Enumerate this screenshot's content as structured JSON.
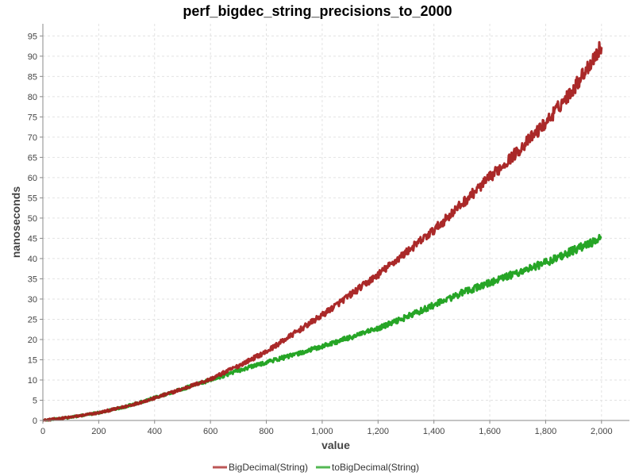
{
  "chart_data": {
    "type": "line",
    "title": "perf_bigdec_string_precisions_to_2000",
    "xlabel": "value",
    "ylabel": "nanoseconds",
    "xlim": [
      0,
      2100
    ],
    "ylim": [
      0,
      98
    ],
    "x_ticks": [
      0,
      200,
      400,
      600,
      800,
      1000,
      1200,
      1400,
      1600,
      1800,
      2000
    ],
    "x_tick_labels": [
      "0",
      "200",
      "400",
      "600",
      "800",
      "1,000",
      "1,200",
      "1,400",
      "1,600",
      "1,800",
      "2,000"
    ],
    "y_ticks": [
      0,
      5,
      10,
      15,
      20,
      25,
      30,
      35,
      40,
      45,
      50,
      55,
      60,
      65,
      70,
      75,
      80,
      85,
      90,
      95
    ],
    "grid": true,
    "legend_position": "bottom-center",
    "series": [
      {
        "name": "BigDecimal(String)",
        "color": "#a51d1d",
        "x": [
          0,
          100,
          200,
          300,
          400,
          500,
          600,
          700,
          800,
          900,
          1000,
          1100,
          1200,
          1300,
          1400,
          1500,
          1600,
          1700,
          1800,
          1900,
          2000
        ],
        "values": [
          0,
          0.8,
          1.9,
          3.5,
          5.5,
          7.8,
          10.2,
          13.5,
          17.0,
          21.5,
          26.0,
          31.0,
          36.0,
          41.5,
          47.0,
          53.5,
          60.0,
          66.5,
          73.5,
          82.0,
          92.5
        ]
      },
      {
        "name": "toBigDecimal(String)",
        "color": "#1aa01a",
        "x": [
          0,
          100,
          200,
          300,
          400,
          500,
          600,
          700,
          800,
          900,
          1000,
          1100,
          1200,
          1300,
          1400,
          1500,
          1600,
          1700,
          1800,
          1900,
          2000
        ],
        "values": [
          0,
          0.8,
          1.9,
          3.5,
          5.6,
          7.8,
          10.0,
          12.3,
          14.4,
          16.2,
          18.3,
          20.5,
          22.7,
          25.5,
          28.5,
          31.5,
          34.0,
          36.5,
          39.0,
          42.0,
          45.0
        ]
      }
    ]
  }
}
